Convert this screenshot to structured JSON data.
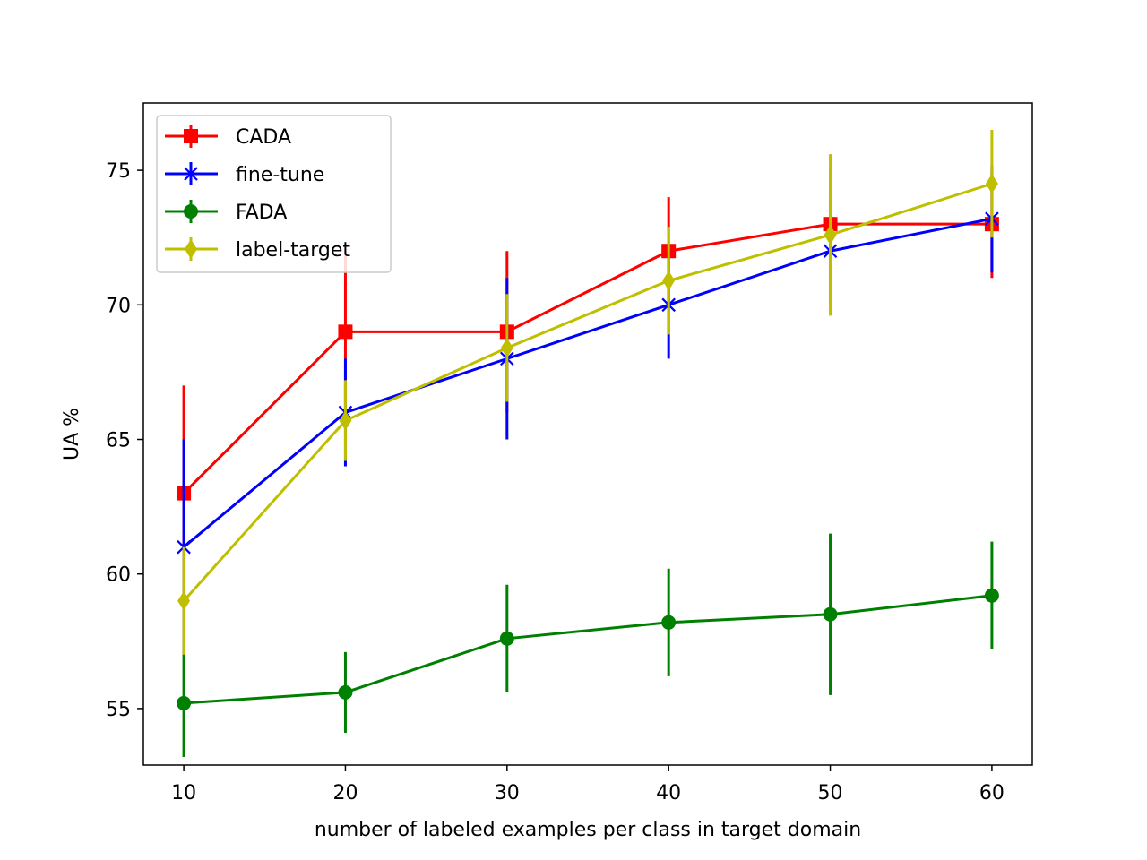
{
  "chart_data": {
    "type": "line",
    "title": "",
    "xlabel": "number of labeled examples per class in target domain",
    "ylabel": "UA %",
    "x": [
      10,
      20,
      30,
      40,
      50,
      60
    ],
    "xlim": [
      7.5,
      62.5
    ],
    "ylim": [
      52.9,
      77.5
    ],
    "xticks": [
      10,
      20,
      30,
      40,
      50,
      60
    ],
    "yticks": [
      55,
      60,
      65,
      70,
      75
    ],
    "grid": false,
    "legend_position": "upper-left",
    "series": [
      {
        "name": "CADA",
        "color": "#ff0000",
        "marker": "square",
        "values": [
          63,
          69,
          69,
          72,
          73,
          73
        ],
        "errors": [
          4,
          3,
          3,
          2,
          2,
          2
        ]
      },
      {
        "name": "fine-tune",
        "color": "#0000ff",
        "marker": "x",
        "values": [
          61,
          66,
          68,
          70,
          72,
          73.2
        ],
        "errors": [
          4,
          2,
          3,
          2,
          2,
          2
        ]
      },
      {
        "name": "FADA",
        "color": "#008000",
        "marker": "circle",
        "values": [
          55.2,
          55.6,
          57.6,
          58.2,
          58.5,
          59.2
        ],
        "errors": [
          2,
          1.5,
          2,
          2,
          3,
          2
        ]
      },
      {
        "name": "label-target",
        "color": "#bfbf00",
        "marker": "diamond",
        "values": [
          59,
          65.7,
          68.4,
          70.9,
          72.6,
          74.5
        ],
        "errors": [
          2,
          1.5,
          2,
          2,
          3,
          2
        ]
      }
    ]
  }
}
